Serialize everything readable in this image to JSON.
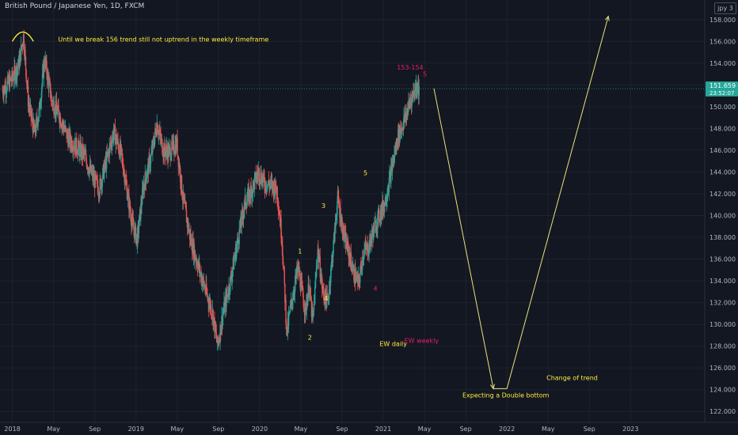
{
  "header": {
    "title": "British Pound / Japanese Yen, 1D, FXCM"
  },
  "logo_text": "jpy 3",
  "price_box": {
    "price": "151.659",
    "countdown": "23:52:07"
  },
  "colors": {
    "background": "#131722",
    "grid": "#1e222d",
    "up": "#26a69a",
    "down": "#ef5350",
    "annotation": "#ffeb3b",
    "weekly_label": "#e91e63",
    "price_line": "#26a69a",
    "axis_text": "#b2b5be"
  },
  "chart_data": {
    "type": "candlestick",
    "title": "British Pound / Japanese Yen, 1D, FXCM",
    "x_ticks": [
      "2018",
      "May",
      "Sep",
      "2019",
      "May",
      "Sep",
      "2020",
      "May",
      "Sep",
      "2021",
      "May",
      "Sep",
      "2022",
      "May",
      "Sep",
      "2023"
    ],
    "y_ticks": [
      "122.000",
      "124.000",
      "126.000",
      "128.000",
      "130.000",
      "132.000",
      "134.000",
      "136.000",
      "138.000",
      "140.000",
      "142.000",
      "144.000",
      "146.000",
      "148.000",
      "150.000",
      "152.000",
      "154.000",
      "156.000",
      "158.000"
    ],
    "ylim": [
      121.0,
      159.8
    ],
    "xlim": [
      2017.9,
      2023.6
    ],
    "last_price": 151.659,
    "price_path": [
      [
        2017.92,
        151.5
      ],
      [
        2018.0,
        152.6
      ],
      [
        2018.05,
        153.8
      ],
      [
        2018.09,
        156.5
      ],
      [
        2018.13,
        150.3
      ],
      [
        2018.18,
        147.5
      ],
      [
        2018.22,
        149.8
      ],
      [
        2018.26,
        154.4
      ],
      [
        2018.32,
        150.5
      ],
      [
        2018.38,
        149.2
      ],
      [
        2018.45,
        147.1
      ],
      [
        2018.52,
        146.3
      ],
      [
        2018.58,
        145.6
      ],
      [
        2018.64,
        143.8
      ],
      [
        2018.7,
        142.4
      ],
      [
        2018.76,
        145.0
      ],
      [
        2018.82,
        147.7
      ],
      [
        2018.88,
        145.6
      ],
      [
        2018.92,
        142.8
      ],
      [
        2018.97,
        139.2
      ],
      [
        2019.01,
        137.8
      ],
      [
        2019.06,
        142.7
      ],
      [
        2019.12,
        145.3
      ],
      [
        2019.17,
        148.4
      ],
      [
        2019.22,
        146.0
      ],
      [
        2019.27,
        145.8
      ],
      [
        2019.33,
        146.6
      ],
      [
        2019.38,
        141.5
      ],
      [
        2019.44,
        137.9
      ],
      [
        2019.5,
        135.5
      ],
      [
        2019.56,
        133.2
      ],
      [
        2019.62,
        131.0
      ],
      [
        2019.66,
        128.0
      ],
      [
        2019.7,
        130.8
      ],
      [
        2019.76,
        133.8
      ],
      [
        2019.82,
        137.5
      ],
      [
        2019.88,
        141.1
      ],
      [
        2019.94,
        142.5
      ],
      [
        2019.99,
        144.0
      ],
      [
        2020.04,
        143.0
      ],
      [
        2020.09,
        142.8
      ],
      [
        2020.14,
        142.4
      ],
      [
        2020.18,
        138.0
      ],
      [
        2020.22,
        129.2
      ],
      [
        2020.25,
        131.5
      ],
      [
        2020.31,
        135.2
      ],
      [
        2020.37,
        131.2
      ],
      [
        2020.4,
        133.6
      ],
      [
        2020.43,
        130.1
      ],
      [
        2020.47,
        137.0
      ],
      [
        2020.51,
        133.0
      ],
      [
        2020.55,
        132.0
      ],
      [
        2020.6,
        137.6
      ],
      [
        2020.63,
        141.6
      ],
      [
        2020.68,
        138.2
      ],
      [
        2020.73,
        136.2
      ],
      [
        2020.76,
        134.7
      ],
      [
        2020.8,
        133.7
      ],
      [
        2020.84,
        136.7
      ],
      [
        2020.88,
        137.0
      ],
      [
        2020.92,
        138.6
      ],
      [
        2020.96,
        139.8
      ],
      [
        2021.01,
        141.1
      ],
      [
        2021.06,
        143.8
      ],
      [
        2021.12,
        147.3
      ],
      [
        2021.17,
        148.7
      ],
      [
        2021.22,
        150.6
      ],
      [
        2021.27,
        152.0
      ],
      [
        2021.29,
        151.66
      ]
    ],
    "projection_path": [
      [
        2021.41,
        151.66
      ],
      [
        2021.89,
        124.1
      ],
      [
        2022.0,
        124.1
      ],
      [
        2022.82,
        158.3
      ]
    ],
    "arc": {
      "x": [
        2018.0,
        2018.17
      ],
      "y": 156.0,
      "height": 0.85
    },
    "annotations": [
      {
        "text": "Until we break 156 trend still not uptrend in the weekly timeframe",
        "x": 2018.37,
        "y": 156.0,
        "color": "yellow"
      },
      {
        "text": "153-154",
        "x": 2021.11,
        "y": 153.4,
        "color": "pink"
      },
      {
        "text": "5",
        "x": 2021.32,
        "y": 152.8,
        "color": "pink"
      },
      {
        "text": "1",
        "x": 2020.31,
        "y": 136.5,
        "color": "yellow"
      },
      {
        "text": "2",
        "x": 2020.39,
        "y": 128.6,
        "color": "yellow"
      },
      {
        "text": "3",
        "x": 2020.5,
        "y": 140.7,
        "color": "yellow"
      },
      {
        "text": "4",
        "x": 2020.52,
        "y": 132.2,
        "color": "yellow"
      },
      {
        "text": "5",
        "x": 2020.84,
        "y": 143.7,
        "color": "yellow"
      },
      {
        "text": "4",
        "x": 2020.92,
        "y": 133.1,
        "color": "pink"
      },
      {
        "text": "EW daily",
        "x": 2020.97,
        "y": 128.0,
        "color": "yellow"
      },
      {
        "text": "EW weekly",
        "x": 2021.17,
        "y": 128.3,
        "color": "pink"
      },
      {
        "text": "Expecting a Double bottom",
        "x": 2021.64,
        "y": 123.3,
        "color": "yellow"
      },
      {
        "text": "Change of trend",
        "x": 2022.32,
        "y": 124.9,
        "color": "yellow"
      }
    ]
  }
}
